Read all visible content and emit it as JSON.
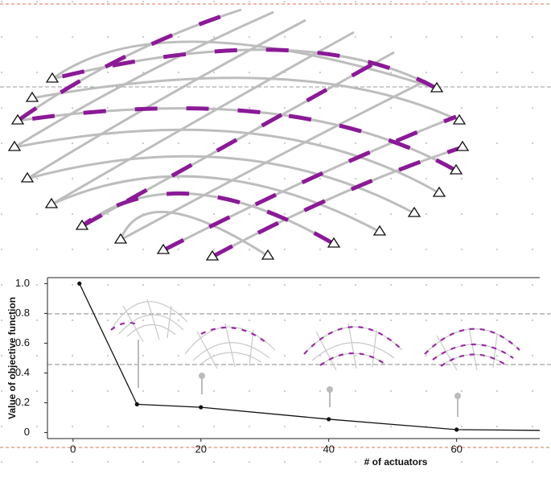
{
  "chart_data": {
    "type": "line",
    "x_label": "# of actuators",
    "y_label": "Value of objective function",
    "x": [
      1,
      10,
      20,
      40,
      60,
      73
    ],
    "values": [
      1.0,
      0.19,
      0.17,
      0.09,
      0.02,
      0.015
    ],
    "color": "#111111",
    "xlim": [
      -4,
      73
    ],
    "xticks": [
      0,
      20,
      40,
      60
    ],
    "ylim": [
      -0.04,
      1.04
    ],
    "yticks": [
      0,
      0.2,
      0.4,
      0.6,
      0.8,
      {
        "value": 1,
        "label": "1.0"
      }
    ],
    "grid": false
  }
}
